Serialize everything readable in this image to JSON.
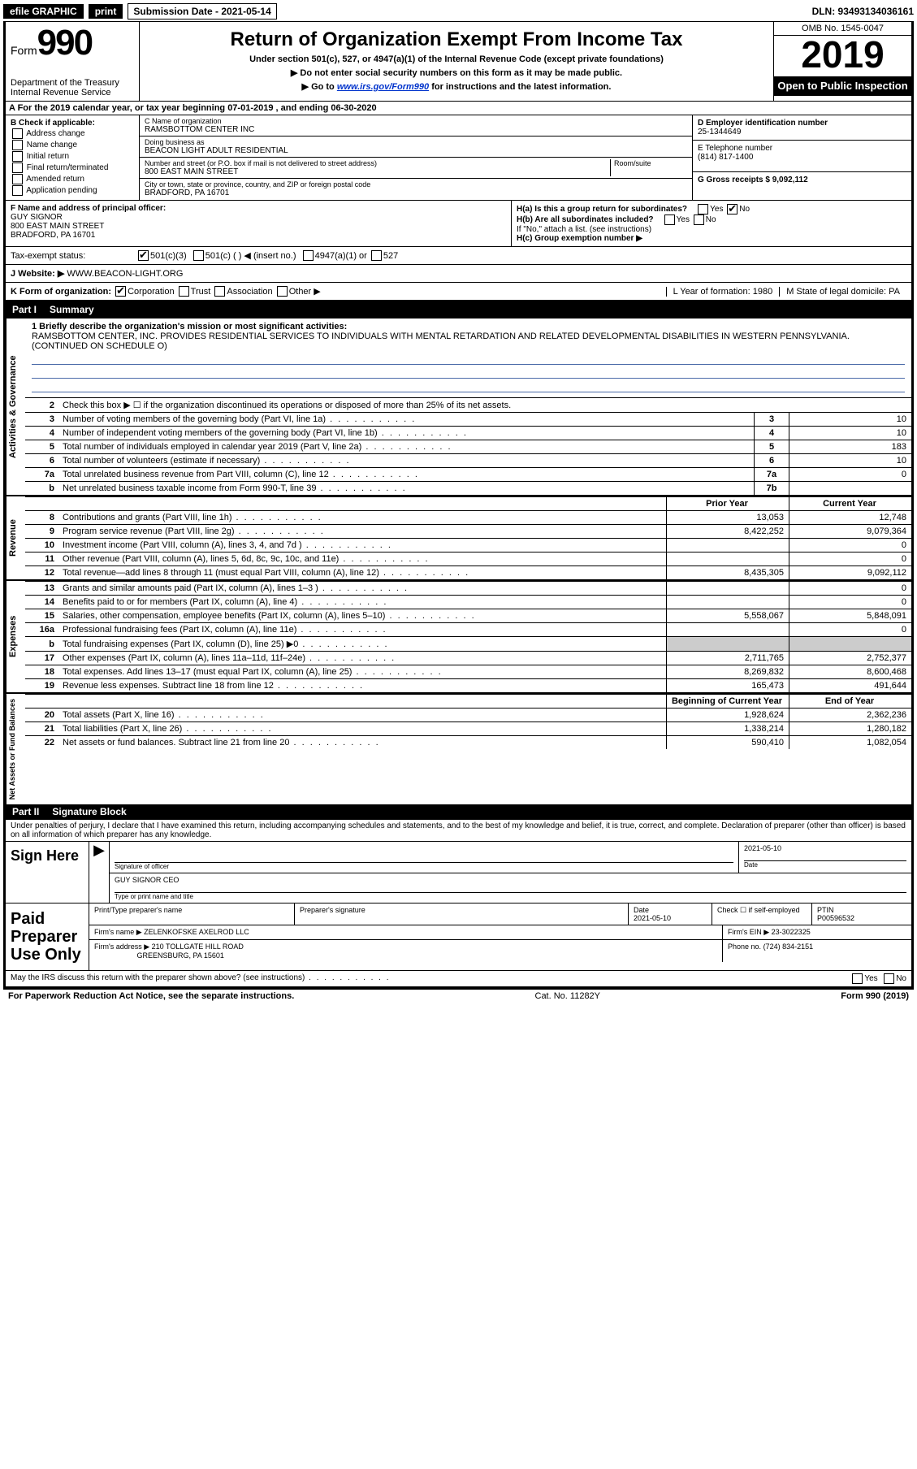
{
  "topbar": {
    "efile": "efile GRAPHIC",
    "print": "print",
    "sub_label": "Submission Date - 2021-05-14",
    "dln": "DLN: 93493134036161"
  },
  "header": {
    "form_prefix": "Form",
    "form_num": "990",
    "title": "Return of Organization Exempt From Income Tax",
    "sub1": "Under section 501(c), 527, or 4947(a)(1) of the Internal Revenue Code (except private foundations)",
    "sub2": "▶ Do not enter social security numbers on this form as it may be made public.",
    "sub3_a": "▶ Go to ",
    "sub3_link": "www.irs.gov/Form990",
    "sub3_b": " for instructions and the latest information.",
    "dept": "Department of the Treasury\nInternal Revenue Service",
    "omb": "OMB No. 1545-0047",
    "year": "2019",
    "open": "Open to Public Inspection"
  },
  "rowA": "A  For the 2019 calendar year, or tax year beginning 07-01-2019    , and ending 06-30-2020",
  "boxB": {
    "title": "B Check if applicable:",
    "items": [
      "Address change",
      "Name change",
      "Initial return",
      "Final return/terminated",
      "Amended return",
      "Application pending"
    ]
  },
  "boxC": {
    "name_label": "C Name of organization",
    "name": "RAMSBOTTOM CENTER INC",
    "dba_label": "Doing business as",
    "dba": "BEACON LIGHT ADULT RESIDENTIAL",
    "addr_label": "Number and street (or P.O. box if mail is not delivered to street address)",
    "room_label": "Room/suite",
    "addr": "800 EAST MAIN STREET",
    "city_label": "City or town, state or province, country, and ZIP or foreign postal code",
    "city": "BRADFORD, PA  16701"
  },
  "boxD": {
    "ein_label": "D Employer identification number",
    "ein": "25-1344649",
    "phone_label": "E Telephone number",
    "phone": "(814) 817-1400",
    "gross_label": "G Gross receipts $ 9,092,112"
  },
  "boxF": {
    "label": "F  Name and address of principal officer:",
    "name": "GUY SIGNOR",
    "addr1": "800 EAST MAIN STREET",
    "addr2": "BRADFORD, PA  16701"
  },
  "boxH": {
    "a": "H(a)  Is this a group return for subordinates?",
    "b": "H(b)  Are all subordinates included?",
    "b2": "If \"No,\" attach a list. (see instructions)",
    "c": "H(c)  Group exemption number ▶",
    "yes": "Yes",
    "no": "No"
  },
  "taxexempt": {
    "label": "Tax-exempt status:",
    "o1": "501(c)(3)",
    "o2": "501(c) (  ) ◀ (insert no.)",
    "o3": "4947(a)(1) or",
    "o4": "527"
  },
  "website": {
    "label": "J   Website: ▶",
    "value": "WWW.BEACON-LIGHT.ORG"
  },
  "korg": {
    "label": "K Form of organization:",
    "o1": "Corporation",
    "o2": "Trust",
    "o3": "Association",
    "o4": "Other ▶",
    "l": "L Year of formation: 1980",
    "m": "M State of legal domicile: PA"
  },
  "part1": {
    "tab": "Part I",
    "title": "Summary"
  },
  "mission": {
    "label": "1  Briefly describe the organization's mission or most significant activities:",
    "text": "RAMSBOTTOM CENTER, INC. PROVIDES RESIDENTIAL SERVICES TO INDIVIDUALS WITH MENTAL RETARDATION AND RELATED DEVELOPMENTAL DISABILITIES IN WESTERN PENNSYLVANIA. (CONTINUED ON SCHEDULE O)"
  },
  "gov_rows": [
    {
      "n": "2",
      "d": "Check this box ▶ ☐  if the organization discontinued its operations or disposed of more than 25% of its net assets.",
      "b": "",
      "v": ""
    },
    {
      "n": "3",
      "d": "Number of voting members of the governing body (Part VI, line 1a)",
      "b": "3",
      "v": "10"
    },
    {
      "n": "4",
      "d": "Number of independent voting members of the governing body (Part VI, line 1b)",
      "b": "4",
      "v": "10"
    },
    {
      "n": "5",
      "d": "Total number of individuals employed in calendar year 2019 (Part V, line 2a)",
      "b": "5",
      "v": "183"
    },
    {
      "n": "6",
      "d": "Total number of volunteers (estimate if necessary)",
      "b": "6",
      "v": "10"
    },
    {
      "n": "7a",
      "d": "Total unrelated business revenue from Part VIII, column (C), line 12",
      "b": "7a",
      "v": "0"
    },
    {
      "n": "b",
      "d": "Net unrelated business taxable income from Form 990-T, line 39",
      "b": "7b",
      "v": ""
    }
  ],
  "col_headers": {
    "prior": "Prior Year",
    "current": "Current Year",
    "begin": "Beginning of Current Year",
    "end": "End of Year"
  },
  "rev_rows": [
    {
      "n": "8",
      "d": "Contributions and grants (Part VIII, line 1h)",
      "p": "13,053",
      "c": "12,748"
    },
    {
      "n": "9",
      "d": "Program service revenue (Part VIII, line 2g)",
      "p": "8,422,252",
      "c": "9,079,364"
    },
    {
      "n": "10",
      "d": "Investment income (Part VIII, column (A), lines 3, 4, and 7d )",
      "p": "",
      "c": "0"
    },
    {
      "n": "11",
      "d": "Other revenue (Part VIII, column (A), lines 5, 6d, 8c, 9c, 10c, and 11e)",
      "p": "",
      "c": "0"
    },
    {
      "n": "12",
      "d": "Total revenue—add lines 8 through 11 (must equal Part VIII, column (A), line 12)",
      "p": "8,435,305",
      "c": "9,092,112"
    }
  ],
  "exp_rows": [
    {
      "n": "13",
      "d": "Grants and similar amounts paid (Part IX, column (A), lines 1–3 )",
      "p": "",
      "c": "0"
    },
    {
      "n": "14",
      "d": "Benefits paid to or for members (Part IX, column (A), line 4)",
      "p": "",
      "c": "0"
    },
    {
      "n": "15",
      "d": "Salaries, other compensation, employee benefits (Part IX, column (A), lines 5–10)",
      "p": "5,558,067",
      "c": "5,848,091"
    },
    {
      "n": "16a",
      "d": "Professional fundraising fees (Part IX, column (A), line 11e)",
      "p": "",
      "c": "0"
    },
    {
      "n": "b",
      "d": "Total fundraising expenses (Part IX, column (D), line 25) ▶0",
      "p": "shade",
      "c": "shade"
    },
    {
      "n": "17",
      "d": "Other expenses (Part IX, column (A), lines 11a–11d, 11f–24e)",
      "p": "2,711,765",
      "c": "2,752,377"
    },
    {
      "n": "18",
      "d": "Total expenses. Add lines 13–17 (must equal Part IX, column (A), line 25)",
      "p": "8,269,832",
      "c": "8,600,468"
    },
    {
      "n": "19",
      "d": "Revenue less expenses. Subtract line 18 from line 12",
      "p": "165,473",
      "c": "491,644"
    }
  ],
  "net_rows": [
    {
      "n": "20",
      "d": "Total assets (Part X, line 16)",
      "p": "1,928,624",
      "c": "2,362,236"
    },
    {
      "n": "21",
      "d": "Total liabilities (Part X, line 26)",
      "p": "1,338,214",
      "c": "1,280,182"
    },
    {
      "n": "22",
      "d": "Net assets or fund balances. Subtract line 21 from line 20",
      "p": "590,410",
      "c": "1,082,054"
    }
  ],
  "side_labels": {
    "gov": "Activities & Governance",
    "rev": "Revenue",
    "exp": "Expenses",
    "net": "Net Assets or Fund Balances"
  },
  "part2": {
    "tab": "Part II",
    "title": "Signature Block",
    "pen": "Under penalties of perjury, I declare that I have examined this return, including accompanying schedules and statements, and to the best of my knowledge and belief, it is true, correct, and complete. Declaration of preparer (other than officer) is based on all information of which preparer has any knowledge."
  },
  "sign": {
    "label": "Sign Here",
    "sig_of": "Signature of officer",
    "date": "2021-05-10",
    "date_l": "Date",
    "name": "GUY SIGNOR  CEO",
    "name_l": "Type or print name and title"
  },
  "paid": {
    "label": "Paid Preparer Use Only",
    "h1": "Print/Type preparer's name",
    "h2": "Preparer's signature",
    "h3": "Date",
    "date": "2021-05-10",
    "h4": "Check ☐ if self-employed",
    "h5": "PTIN",
    "ptin": "P00596532",
    "firm_l": "Firm's name    ▶",
    "firm": "ZELENKOFSKE AXELROD LLC",
    "ein_l": "Firm's EIN ▶",
    "ein": "23-3022325",
    "addr_l": "Firm's address ▶",
    "addr1": "210 TOLLGATE HILL ROAD",
    "addr2": "GREENSBURG, PA  15601",
    "phone_l": "Phone no.",
    "phone": "(724) 834-2151",
    "discuss": "May the IRS discuss this return with the preparer shown above? (see instructions)"
  },
  "footer": {
    "left": "For Paperwork Reduction Act Notice, see the separate instructions.",
    "mid": "Cat. No. 11282Y",
    "right": "Form 990 (2019)"
  }
}
